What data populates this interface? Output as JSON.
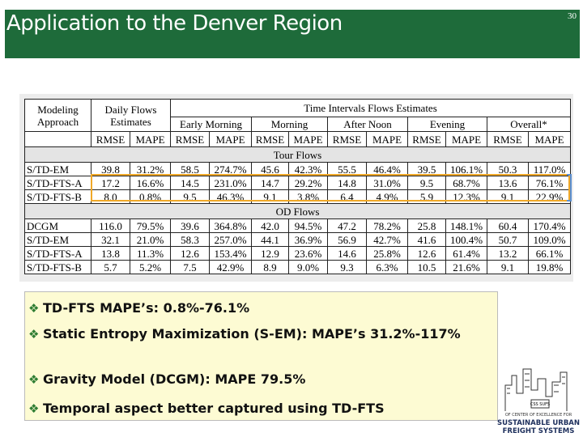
{
  "header": {
    "title": "Application to the Denver Region",
    "page_number": "30"
  },
  "table": {
    "corner": "Modeling Approach",
    "daily": "Daily Flows Estimates",
    "time": "Time Intervals Flows Estimates",
    "periods": [
      "Early Morning",
      "Morning",
      "After Noon",
      "Evening",
      "Overall*"
    ],
    "metrics": [
      "RMSE",
      "MAPE",
      "RMSE",
      "MAPE",
      "RMSE",
      "MAPE",
      "RMSE",
      "MAPE",
      "RMSE",
      "MAPE",
      "RMSE",
      "MAPE"
    ],
    "sections": [
      {
        "title": "Tour Flows",
        "rows": [
          [
            "S/TD-EM",
            "39.8",
            "31.2%",
            "58.5",
            "274.7%",
            "45.6",
            "42.3%",
            "55.5",
            "46.4%",
            "39.5",
            "106.1%",
            "50.3",
            "117.0%"
          ],
          [
            "S/TD-FTS-A",
            "17.2",
            "16.6%",
            "14.5",
            "231.0%",
            "14.7",
            "29.2%",
            "14.8",
            "31.0%",
            "9.5",
            "68.7%",
            "13.6",
            "76.1%"
          ],
          [
            "S/TD-FTS-B",
            "8.0",
            "0.8%",
            "9.5",
            "46.3%",
            "9.1",
            "3.8%",
            "6.4",
            "4.9%",
            "5.9",
            "12.3%",
            "9.1",
            "22.9%"
          ]
        ]
      },
      {
        "title": "OD Flows",
        "rows": [
          [
            "DCGM",
            "116.0",
            "79.5%",
            "39.6",
            "364.8%",
            "42.0",
            "94.5%",
            "47.2",
            "78.2%",
            "25.8",
            "148.1%",
            "60.4",
            "170.4%"
          ],
          [
            "S/TD-EM",
            "32.1",
            "21.0%",
            "58.3",
            "257.0%",
            "44.1",
            "36.9%",
            "56.9",
            "42.7%",
            "41.6",
            "100.4%",
            "50.7",
            "109.0%"
          ],
          [
            "S/TD-FTS-A",
            "13.8",
            "11.3%",
            "12.6",
            "153.4%",
            "12.9",
            "23.6%",
            "14.6",
            "25.8%",
            "12.6",
            "61.4%",
            "13.2",
            "66.1%"
          ],
          [
            "S/TD-FTS-B",
            "5.7",
            "5.2%",
            "7.5",
            "42.9%",
            "8.9",
            "9.0%",
            "9.3",
            "6.3%",
            "10.5",
            "21.6%",
            "9.1",
            "19.8%"
          ]
        ]
      }
    ]
  },
  "bullets": [
    "TD-FTS MAPE’s: 0.8%-76.1%",
    "Static Entropy Maximization (S-EM): MAPE’s 31.2%-117%",
    "Gravity Model (DCGM): MAPE 79.5%",
    "Temporal aspect better captured using TD-FTS"
  ],
  "logo": {
    "badge": "CSS SUFS",
    "line1": "OF CENTER OF EXCELLENCE FOR",
    "line2": "SUSTAINABLE URBAN",
    "line3": "FREIGHT SYSTEMS"
  }
}
